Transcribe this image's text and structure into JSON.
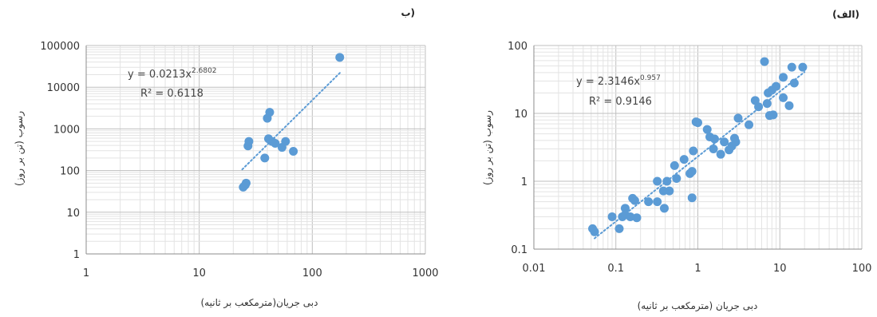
{
  "chart_data": [
    {
      "type": "scatter",
      "panel_label": "ب)",
      "xlabel": "دبی جریان(مترمکعب بر ثانیه)",
      "ylabel": "رسوب (تن بر روز)",
      "xscale": "log",
      "yscale": "log",
      "xlim": [
        1,
        1000
      ],
      "ylim": [
        1,
        100000
      ],
      "xticks": [
        "1",
        "10",
        "100",
        "1000"
      ],
      "yticks": [
        "1",
        "10",
        "100",
        "1000",
        "10000",
        "100000"
      ],
      "grid": true,
      "points": [
        {
          "x": 24.5,
          "y": 40
        },
        {
          "x": 25.5,
          "y": 45
        },
        {
          "x": 26,
          "y": 50
        },
        {
          "x": 27,
          "y": 390
        },
        {
          "x": 27.5,
          "y": 500
        },
        {
          "x": 38,
          "y": 200
        },
        {
          "x": 40,
          "y": 1800
        },
        {
          "x": 41,
          "y": 580
        },
        {
          "x": 42,
          "y": 2500
        },
        {
          "x": 44,
          "y": 500
        },
        {
          "x": 47,
          "y": 450
        },
        {
          "x": 54,
          "y": 360
        },
        {
          "x": 58,
          "y": 500
        },
        {
          "x": 68,
          "y": 290
        },
        {
          "x": 175,
          "y": 52000
        }
      ],
      "trendline": {
        "equation": "y = 0.0213x",
        "exponent": "2.6802",
        "r2": "R² = 0.6118",
        "a": 0.0213,
        "b": 2.6802,
        "x_range": [
          24,
          180
        ]
      },
      "marker_color": "#5B9BD5",
      "trend_color": "#5B9BD5"
    },
    {
      "type": "scatter",
      "panel_label": "(الف)",
      "xlabel": "دبی جریان (مترمکعب بر ثانیه)",
      "ylabel": "رسوب (تن بر روز)",
      "xscale": "log",
      "yscale": "log",
      "xlim": [
        0.01,
        100
      ],
      "ylim": [
        0.1,
        100
      ],
      "xticks": [
        "0.01",
        "0.1",
        "1",
        "10",
        "100"
      ],
      "yticks": [
        "0.1",
        "1",
        "10",
        "100"
      ],
      "grid": true,
      "points": [
        {
          "x": 0.052,
          "y": 0.2
        },
        {
          "x": 0.055,
          "y": 0.18
        },
        {
          "x": 0.09,
          "y": 0.3
        },
        {
          "x": 0.11,
          "y": 0.2
        },
        {
          "x": 0.12,
          "y": 0.3
        },
        {
          "x": 0.13,
          "y": 0.4
        },
        {
          "x": 0.13,
          "y": 0.32
        },
        {
          "x": 0.15,
          "y": 0.3
        },
        {
          "x": 0.16,
          "y": 0.56
        },
        {
          "x": 0.17,
          "y": 0.52
        },
        {
          "x": 0.18,
          "y": 0.29
        },
        {
          "x": 0.25,
          "y": 0.5
        },
        {
          "x": 0.32,
          "y": 0.5
        },
        {
          "x": 0.32,
          "y": 1.0
        },
        {
          "x": 0.38,
          "y": 0.72
        },
        {
          "x": 0.39,
          "y": 0.4
        },
        {
          "x": 0.42,
          "y": 1.0
        },
        {
          "x": 0.45,
          "y": 0.72
        },
        {
          "x": 0.52,
          "y": 1.7
        },
        {
          "x": 0.55,
          "y": 1.1
        },
        {
          "x": 0.68,
          "y": 2.1
        },
        {
          "x": 0.8,
          "y": 1.3
        },
        {
          "x": 0.85,
          "y": 1.4
        },
        {
          "x": 0.85,
          "y": 0.57
        },
        {
          "x": 0.88,
          "y": 2.8
        },
        {
          "x": 0.95,
          "y": 7.5
        },
        {
          "x": 1.0,
          "y": 7.3
        },
        {
          "x": 1.3,
          "y": 5.8
        },
        {
          "x": 1.4,
          "y": 4.5
        },
        {
          "x": 1.55,
          "y": 3.0
        },
        {
          "x": 1.6,
          "y": 4.2
        },
        {
          "x": 1.9,
          "y": 2.5
        },
        {
          "x": 2.1,
          "y": 3.8
        },
        {
          "x": 2.4,
          "y": 2.9
        },
        {
          "x": 2.6,
          "y": 3.3
        },
        {
          "x": 2.8,
          "y": 4.3
        },
        {
          "x": 2.9,
          "y": 3.8
        },
        {
          "x": 3.1,
          "y": 8.5
        },
        {
          "x": 4.2,
          "y": 6.8
        },
        {
          "x": 5.0,
          "y": 15.5
        },
        {
          "x": 5.5,
          "y": 12.5
        },
        {
          "x": 6.5,
          "y": 58
        },
        {
          "x": 7.0,
          "y": 14
        },
        {
          "x": 7.2,
          "y": 20
        },
        {
          "x": 7.5,
          "y": 9.3
        },
        {
          "x": 8.0,
          "y": 22
        },
        {
          "x": 8.3,
          "y": 9.5
        },
        {
          "x": 9.0,
          "y": 25
        },
        {
          "x": 11,
          "y": 34
        },
        {
          "x": 11,
          "y": 17
        },
        {
          "x": 13,
          "y": 13
        },
        {
          "x": 14,
          "y": 48
        },
        {
          "x": 15,
          "y": 28
        },
        {
          "x": 19,
          "y": 48
        }
      ],
      "trendline": {
        "equation": "y = 2.3146x",
        "exponent": "0.957",
        "r2": "R² = 0.9146",
        "a": 2.3146,
        "b": 0.957,
        "x_range": [
          0.055,
          20
        ]
      },
      "marker_color": "#5B9BD5",
      "trend_color": "#5B9BD5"
    }
  ]
}
